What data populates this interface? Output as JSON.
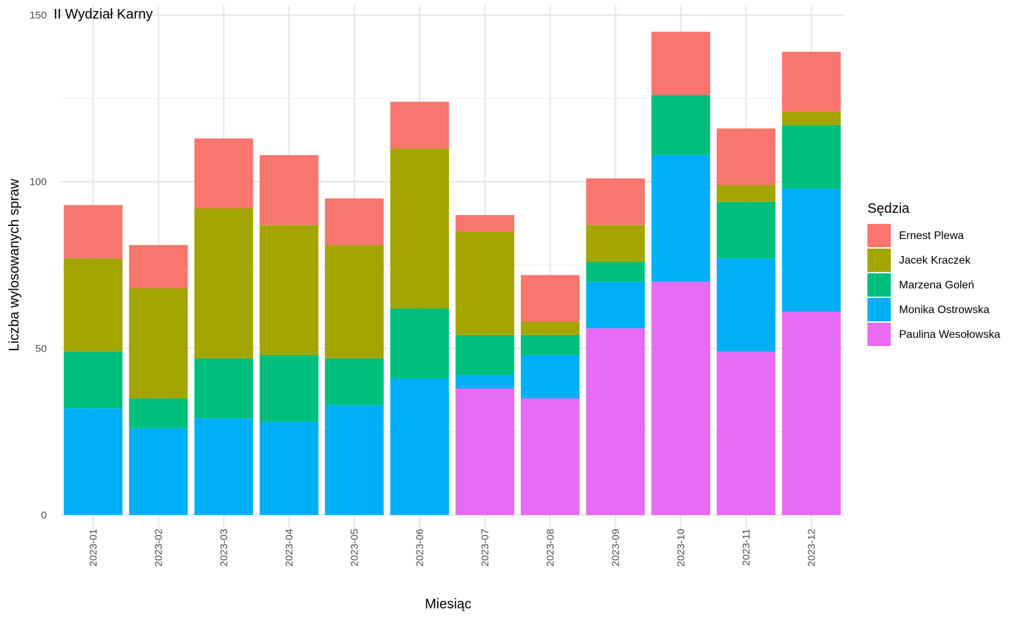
{
  "chart_data": {
    "type": "bar",
    "stacked": true,
    "title": "II Wydział Karny",
    "xlabel": "Miesiąc",
    "ylabel": "Liczba wylosowanych spraw",
    "ylim": [
      0,
      150
    ],
    "yticks": [
      0,
      50,
      100,
      150
    ],
    "grid": true,
    "legend_title": "Sędzia",
    "legend_position": "right",
    "categories": [
      "2023-01",
      "2023-02",
      "2023-03",
      "2023-04",
      "2023-05",
      "2023-06",
      "2023-07",
      "2023-08",
      "2023-09",
      "2023-10",
      "2023-11",
      "2023-12"
    ],
    "series": [
      {
        "name": "Paulina Wesołowska",
        "color": "#E76BF3",
        "values": [
          0,
          0,
          0,
          0,
          0,
          0,
          38,
          35,
          56,
          70,
          49,
          61
        ]
      },
      {
        "name": "Monika Ostrowska",
        "color": "#00B0F6",
        "values": [
          32,
          26,
          29,
          28,
          33,
          41,
          4,
          13,
          14,
          38,
          28,
          37
        ]
      },
      {
        "name": "Marzena Goleń",
        "color": "#00BF7D",
        "values": [
          17,
          9,
          18,
          20,
          14,
          21,
          12,
          6,
          6,
          18,
          17,
          19
        ]
      },
      {
        "name": "Jacek Kraczek",
        "color": "#A3A500",
        "values": [
          28,
          33,
          45,
          39,
          34,
          48,
          31,
          4,
          11,
          0,
          5,
          4
        ]
      },
      {
        "name": "Ernest Plewa",
        "color": "#F8766D",
        "values": [
          16,
          13,
          21,
          21,
          14,
          14,
          5,
          14,
          14,
          19,
          17,
          18
        ]
      }
    ],
    "legend_order": [
      "Ernest Plewa",
      "Jacek Kraczek",
      "Marzena Goleń",
      "Monika Ostrowska",
      "Paulina Wesołowska"
    ]
  }
}
